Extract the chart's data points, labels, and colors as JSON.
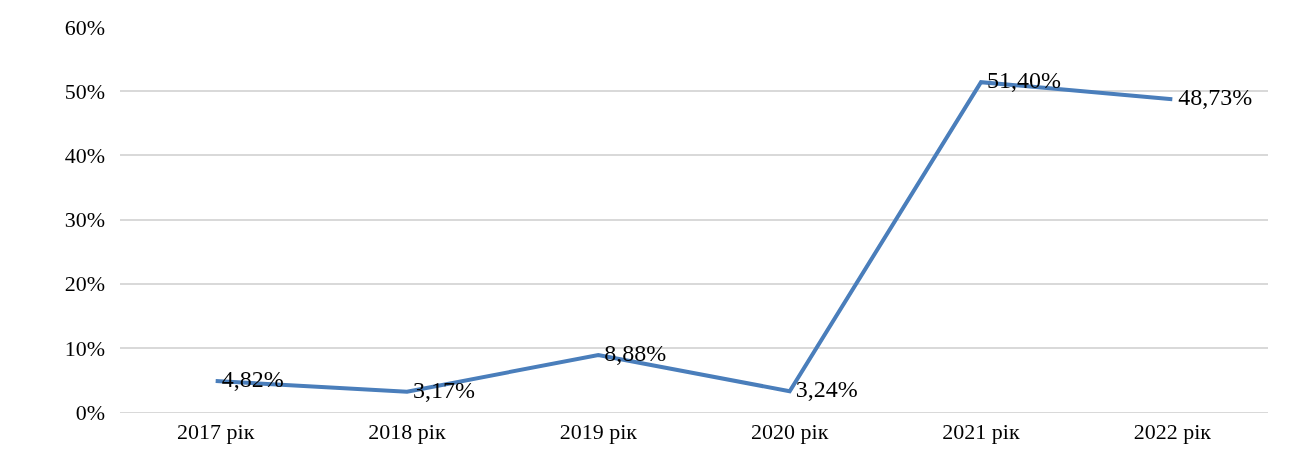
{
  "chart_data": {
    "type": "line",
    "categories": [
      "2017 рік",
      "2018 рік",
      "2019 рік",
      "2020 рік",
      "2021 рік",
      "2022 рік"
    ],
    "series": [
      {
        "color": "#4a7ebb",
        "values": [
          4.82,
          3.17,
          8.88,
          3.24,
          51.4,
          48.73
        ],
        "value_labels": [
          "4,82%",
          "3,17%",
          "8,88%",
          "3,24%",
          "51,40%",
          "48,73%"
        ]
      }
    ],
    "ylim": [
      0,
      60
    ],
    "yticks": [
      {
        "value": 0,
        "label": "0%"
      },
      {
        "value": 10,
        "label": "10%"
      },
      {
        "value": 20,
        "label": "20%"
      },
      {
        "value": 30,
        "label": "30%"
      },
      {
        "value": 40,
        "label": "40%"
      },
      {
        "value": 50,
        "label": "50%"
      },
      {
        "value": 60,
        "label": "60%"
      }
    ],
    "grid": "y",
    "marker": "none",
    "line_style": "solid"
  }
}
